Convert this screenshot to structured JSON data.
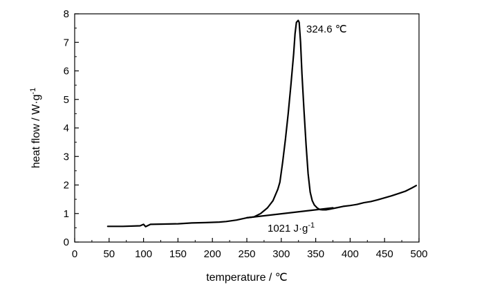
{
  "chart_data": {
    "type": "line",
    "xlabel": "temperature / ℃",
    "ylabel_main": "heat flow / W·g",
    "ylabel_sup": "-1",
    "xlim": [
      0,
      500
    ],
    "ylim": [
      0,
      8
    ],
    "xticks": [
      "0",
      "50",
      "100",
      "150",
      "200",
      "250",
      "300",
      "350",
      "400",
      "450",
      "500"
    ],
    "yticks": [
      "0",
      "1",
      "2",
      "3",
      "4",
      "5",
      "6",
      "7",
      "8"
    ],
    "grid": false,
    "series": [
      {
        "x": [
          48,
          70,
          95,
          100,
          103,
          110,
          130,
          150,
          170,
          190,
          210,
          220,
          235,
          250,
          260,
          270,
          280,
          288,
          295,
          298,
          302,
          306,
          310,
          314,
          318,
          320,
          322,
          324.6,
          326,
          328,
          330,
          333,
          336,
          339,
          342,
          345,
          348,
          352,
          356,
          360,
          365,
          370,
          380,
          390,
          400,
          410,
          420,
          430,
          440,
          450,
          460,
          470,
          480,
          490,
          496
        ],
        "y": [
          0.55,
          0.55,
          0.57,
          0.62,
          0.54,
          0.62,
          0.63,
          0.64,
          0.67,
          0.68,
          0.7,
          0.72,
          0.77,
          0.85,
          0.88,
          1.0,
          1.2,
          1.45,
          1.85,
          2.1,
          2.8,
          3.6,
          4.5,
          5.5,
          6.6,
          7.3,
          7.7,
          7.77,
          7.7,
          7.0,
          5.9,
          4.6,
          3.4,
          2.4,
          1.75,
          1.45,
          1.3,
          1.2,
          1.14,
          1.13,
          1.13,
          1.15,
          1.2,
          1.25,
          1.28,
          1.32,
          1.38,
          1.42,
          1.48,
          1.55,
          1.62,
          1.7,
          1.78,
          1.9,
          1.98
        ]
      },
      {
        "x": [
          250,
          375
        ],
        "y": [
          0.85,
          1.2
        ]
      }
    ],
    "annotations": [
      {
        "text": "324.6 ℃",
        "x": 324.6,
        "y": 7.77
      },
      {
        "text": "1021 J·g",
        "sup": "-1",
        "x": 310,
        "y": 1.0
      }
    ]
  }
}
